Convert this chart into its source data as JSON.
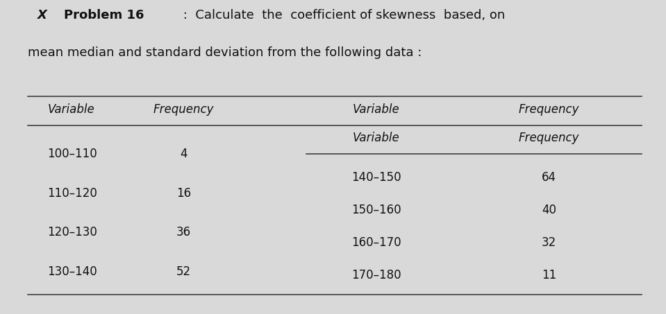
{
  "title_prefix": "X ",
  "title_bold": "Problem 16",
  "title_rest": " :  Calculate  the  coefficient of skewness  based, on",
  "title_line2": "mean median and standard deviation from the following data :",
  "col1_header": "Variable",
  "col2_header": "Frequency",
  "col3_header": "Variable",
  "col4_header": "Frequency",
  "left_variables": [
    "100–110",
    "110–120",
    "120–130",
    "130–140"
  ],
  "left_frequencies": [
    "4",
    "16",
    "36",
    "52"
  ],
  "right_variables": [
    "140–150",
    "150–160",
    "160–170",
    "170–180"
  ],
  "right_frequencies": [
    "64",
    "40",
    "32",
    "11"
  ],
  "bg_color": "#d9d9d9",
  "text_color": "#111111"
}
